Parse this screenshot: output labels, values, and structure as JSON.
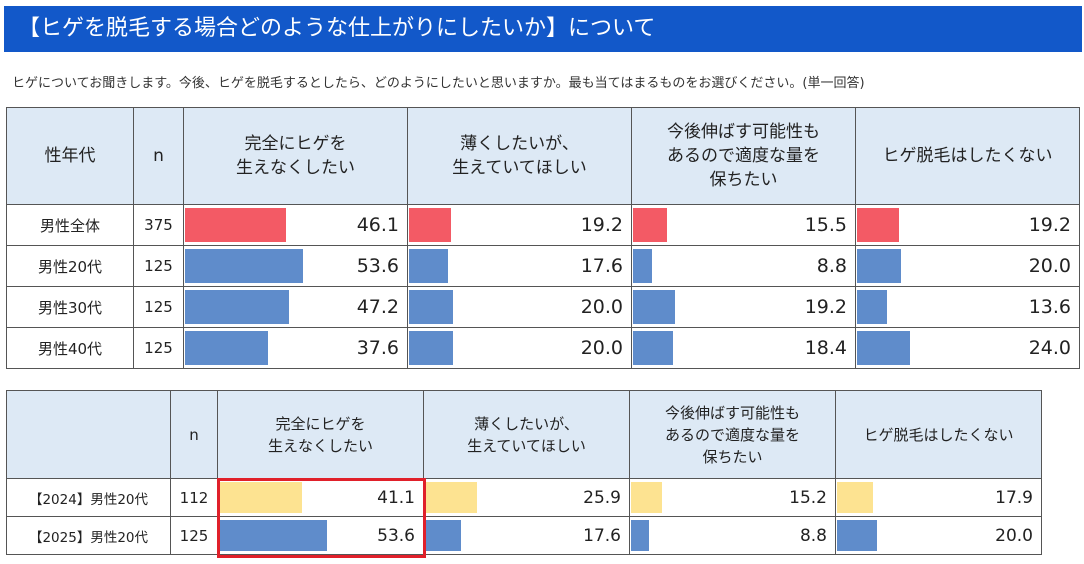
{
  "header": {
    "title": "【ヒゲを脱毛する場合どのような仕上がりにしたいか】について",
    "question": "ヒゲについてお聞きします。今後、ヒゲを脱毛するとしたら、どのようにしたいと思いますか。最も当てはまるものをお選びください。(単一回答)"
  },
  "colors": {
    "title_bg": "#1258c9",
    "total_bar": "#f35a65",
    "segment_bar": "#5f8ccb",
    "year2024_bar": "#fde391",
    "year2025_bar": "#5f8ccb",
    "highlight": "#e0202a",
    "header_bg": "#dde9f5"
  },
  "chart_data": [
    {
      "type": "table",
      "name": "性年代別",
      "headers": {
        "group": "性年代",
        "n": "n",
        "options": [
          [
            "完全にヒゲを",
            "生えなくしたい"
          ],
          [
            "薄くしたいが、",
            "生えていてほしい"
          ],
          [
            "今後伸ばす可能性も",
            "あるので適度な量を",
            "保ちたい"
          ],
          [
            "ヒゲ脱毛はしたくない"
          ]
        ]
      },
      "unit": "%",
      "rows": [
        {
          "label": "男性全体",
          "n": "375",
          "values": [
            46.1,
            19.2,
            15.5,
            19.2
          ],
          "display": [
            "46.1",
            "19.2",
            "15.5",
            "19.2"
          ],
          "color_key": "total_bar"
        },
        {
          "label": "男性20代",
          "n": "125",
          "values": [
            53.6,
            17.6,
            8.8,
            20.0
          ],
          "display": [
            "53.6",
            "17.6",
            "8.8",
            "20.0"
          ],
          "color_key": "segment_bar"
        },
        {
          "label": "男性30代",
          "n": "125",
          "values": [
            47.2,
            20.0,
            19.2,
            13.6
          ],
          "display": [
            "47.2",
            "20.0",
            "19.2",
            "13.6"
          ],
          "color_key": "segment_bar"
        },
        {
          "label": "男性40代",
          "n": "125",
          "values": [
            37.6,
            20.0,
            18.4,
            24.0
          ],
          "display": [
            "37.6",
            "20.0",
            "18.4",
            "24.0"
          ],
          "color_key": "segment_bar"
        }
      ]
    },
    {
      "type": "table",
      "name": "年度比較",
      "headers": {
        "group": "",
        "n": "n",
        "options": [
          [
            "完全にヒゲを",
            "生えなくしたい"
          ],
          [
            "薄くしたいが、",
            "生えていてほしい"
          ],
          [
            "今後伸ばす可能性も",
            "あるので適度な量を",
            "保ちたい"
          ],
          [
            "ヒゲ脱毛はしたくない"
          ]
        ]
      },
      "unit": "%",
      "rows": [
        {
          "label": "【2024】男性20代",
          "n": "112",
          "values": [
            41.1,
            25.9,
            15.2,
            17.9
          ],
          "display": [
            "41.1",
            "25.9",
            "15.2",
            "17.9"
          ],
          "color_key": "year2024_bar"
        },
        {
          "label": "【2025】男性20代",
          "n": "125",
          "values": [
            53.6,
            17.6,
            8.8,
            20.0
          ],
          "display": [
            "53.6",
            "17.6",
            "8.8",
            "20.0"
          ],
          "color_key": "year2025_bar"
        }
      ]
    }
  ]
}
